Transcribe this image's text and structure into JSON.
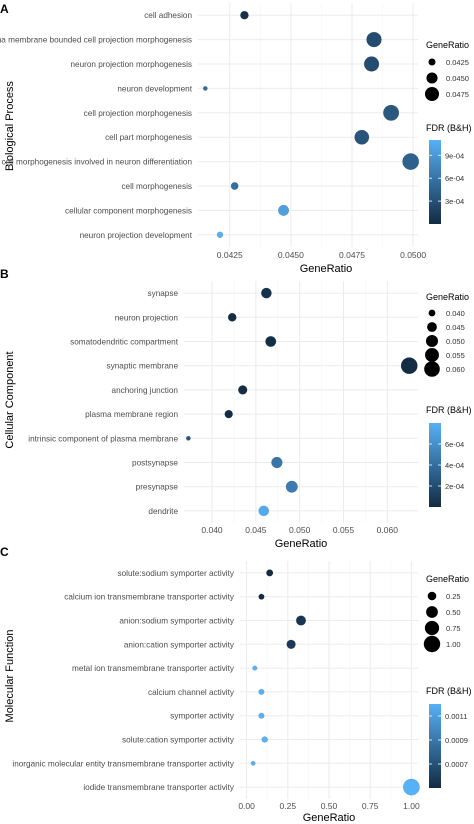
{
  "chart_data": [
    {
      "type": "scatter",
      "panel_label": "A",
      "ylabel": "Biological Process",
      "xlabel": "GeneRatio",
      "xlim": [
        0.0412,
        0.0502
      ],
      "xticks": [
        "0.0425",
        "0.0450",
        "0.0475",
        "0.0500"
      ],
      "xtick_values": [
        0.0425,
        0.045,
        0.0475,
        0.05
      ],
      "categories": [
        "cell adhesion",
        "plasma membrane bounded cell projection morphogenesis",
        "neuron projection morphogenesis",
        "neuron development",
        "cell projection morphogenesis",
        "cell part morphogenesis",
        "cell morphogenesis involved in neuron differentiation",
        "cell morphogenesis",
        "cellular component morphogenesis",
        "neuron projection development"
      ],
      "x": [
        0.0431,
        0.0484,
        0.0483,
        0.0415,
        0.0491,
        0.0479,
        0.0499,
        0.0427,
        0.0447,
        0.0421
      ],
      "fdr": [
        5e-05,
        0.00027,
        0.00027,
        0.00055,
        0.00036,
        0.00034,
        0.00044,
        0.00055,
        0.00095,
        0.0011
      ],
      "size_legend": {
        "title": "GeneRatio",
        "labels": [
          "0.0425",
          "0.0450",
          "0.0475"
        ],
        "values": [
          0.0425,
          0.045,
          0.0475
        ]
      },
      "color_legend": {
        "title": "FDR (B&H)",
        "labels": [
          "9e-04",
          "6e-04",
          "3e-04"
        ],
        "values": [
          0.0009,
          0.0006,
          0.0003
        ],
        "range": [
          0.0,
          0.0011
        ]
      }
    },
    {
      "type": "scatter",
      "panel_label": "B",
      "ylabel": "Cellular Component",
      "xlabel": "GeneRatio",
      "xlim": [
        0.0368,
        0.0635
      ],
      "xticks": [
        "0.040",
        "0.045",
        "0.050",
        "0.055",
        "0.060"
      ],
      "xtick_values": [
        0.04,
        0.045,
        0.05,
        0.055,
        0.06
      ],
      "categories": [
        "synapse",
        "neuron projection",
        "somatodendritic compartment",
        "synaptic membrane",
        "anchoring junction",
        "plasma membrane region",
        "intrinsic component of plasma membrane",
        "postsynapse",
        "presynapse",
        "dendrite"
      ],
      "x": [
        0.0462,
        0.0423,
        0.0467,
        0.0625,
        0.0435,
        0.0419,
        0.0373,
        0.0474,
        0.0491,
        0.0459
      ],
      "fdr": [
        4e-05,
        1e-05,
        2e-05,
        1e-05,
        1e-05,
        1e-05,
        0.00025,
        0.00045,
        0.00048,
        0.00075
      ],
      "size_legend": {
        "title": "GeneRatio",
        "labels": [
          "0.040",
          "0.045",
          "0.050",
          "0.055",
          "0.060"
        ],
        "values": [
          0.04,
          0.045,
          0.05,
          0.055,
          0.06
        ]
      },
      "color_legend": {
        "title": "FDR (B&H)",
        "labels": [
          "6e-04",
          "4e-04",
          "2e-04"
        ],
        "values": [
          0.0006,
          0.0004,
          0.0002
        ],
        "range": [
          0.0,
          0.0008
        ]
      }
    },
    {
      "type": "scatter",
      "panel_label": "C",
      "ylabel": "Molecular Function",
      "xlabel": "GeneRatio",
      "xlim": [
        -0.04,
        1.04
      ],
      "xticks": [
        "0.00",
        "0.25",
        "0.50",
        "0.75",
        "1.00"
      ],
      "xtick_values": [
        0,
        0.25,
        0.5,
        0.75,
        1.0
      ],
      "categories": [
        "solute:sodium symporter activity",
        "calcium ion transmembrane transporter activity",
        "anion:sodium symporter activity",
        "anion:cation symporter activity",
        "metal ion transmembrane transporter activity",
        "calcium channel activity",
        "symporter activity",
        "solute:cation symporter activity",
        "inorganic molecular entity transmembrane transporter activity",
        "iodide transmembrane transporter activity"
      ],
      "x": [
        0.14,
        0.09,
        0.33,
        0.27,
        0.05,
        0.09,
        0.09,
        0.11,
        0.04,
        1.0
      ],
      "fdr": [
        0.0005,
        0.0005,
        0.00055,
        0.00058,
        0.0012,
        0.0012,
        0.0012,
        0.0012,
        0.0012,
        0.0012
      ],
      "size_legend": {
        "title": "GeneRatio",
        "labels": [
          "0.25",
          "0.50",
          "0.75",
          "1.00"
        ],
        "values": [
          0.25,
          0.5,
          0.75,
          1.0
        ]
      },
      "color_legend": {
        "title": "FDR (B&H)",
        "labels": [
          "0.0011",
          "0.0009",
          "0.0007"
        ],
        "values": [
          0.0011,
          0.0009,
          0.0007
        ],
        "range": [
          0.0005,
          0.0012
        ]
      }
    }
  ],
  "colors": {
    "low": "#132B43",
    "high": "#56B1F7",
    "grid_major": "#ebebeb",
    "grid_minor": "#f5f5f5",
    "point_stroke": "#1f3a52"
  }
}
